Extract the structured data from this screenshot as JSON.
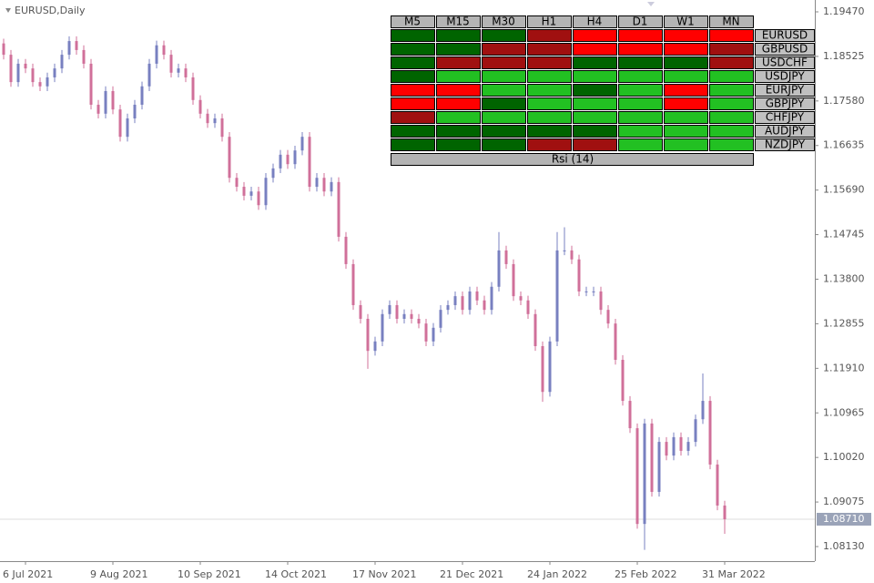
{
  "window": {
    "symbol_label": "EURUSD,Daily"
  },
  "chart_data": {
    "type": "candlestick",
    "up_color": "#7880c0",
    "down_color": "#d0709a",
    "grid": false,
    "categories": [
      null,
      null,
      null,
      "6 Jul 2021",
      null,
      null,
      null,
      null,
      null,
      null,
      null,
      null,
      null,
      null,
      null,
      "9 Aug 2021",
      null,
      null,
      null,
      null,
      null,
      null,
      null,
      null,
      null,
      null,
      null,
      "10 Sep 2021",
      null,
      null,
      null,
      null,
      null,
      null,
      null,
      null,
      null,
      null,
      null,
      "14 Oct 2021",
      null,
      null,
      null,
      null,
      null,
      null,
      null,
      null,
      null,
      null,
      null,
      "17 Nov 2021",
      null,
      null,
      null,
      null,
      null,
      null,
      null,
      null,
      null,
      null,
      null,
      "21 Dec 2021",
      null,
      null,
      null,
      null,
      null,
      null,
      null,
      null,
      null,
      null,
      null,
      "24 Jan 2022",
      null,
      null,
      null,
      null,
      null,
      null,
      null,
      null,
      null,
      null,
      null,
      "25 Feb 2022",
      null,
      null,
      null,
      null,
      null,
      null,
      null,
      null,
      null,
      null,
      null,
      "31 Mar 2022"
    ],
    "open": [
      1.188,
      1.1856,
      1.1798,
      1.1837,
      1.1827,
      1.1798,
      1.1789,
      1.1808,
      1.1827,
      1.1856,
      1.1885,
      1.1866,
      1.1837,
      1.175,
      1.1731,
      1.1779,
      1.174,
      1.1682,
      1.1721,
      1.175,
      1.1789,
      1.1837,
      1.1876,
      1.1856,
      1.1818,
      1.1827,
      1.1808,
      1.176,
      1.1731,
      1.1711,
      1.1721,
      1.1682,
      1.1595,
      1.1576,
      1.1557,
      1.1566,
      1.1537,
      1.1595,
      1.1615,
      1.1644,
      1.1624,
      1.1653,
      1.1682,
      1.1576,
      1.1595,
      1.1566,
      1.1586,
      1.147,
      1.1412,
      1.1325,
      1.1296,
      1.1228,
      1.1248,
      1.1306,
      1.1325,
      1.1296,
      1.1306,
      1.1296,
      1.1286,
      1.1248,
      1.1277,
      1.1315,
      1.1325,
      1.1344,
      1.1315,
      1.1354,
      1.1335,
      1.1315,
      1.1364,
      1.1441,
      1.1412,
      1.1344,
      1.1335,
      1.1306,
      1.1238,
      1.1141,
      1.1248,
      1.1441,
      1.1441,
      1.1422,
      1.1354,
      1.1354,
      1.1354,
      1.1315,
      1.1286,
      1.1209,
      1.1122,
      1.1064,
      1.0861,
      1.1074,
      1.0929,
      1.1035,
      1.1006,
      1.1045,
      1.1016,
      1.1035,
      1.1083,
      1.1122,
      1.0987,
      1.09
    ],
    "high": [
      1.189,
      1.1866,
      1.1847,
      1.1847,
      1.1837,
      1.1808,
      1.1818,
      1.1837,
      1.1866,
      1.1895,
      1.1895,
      1.1876,
      1.1847,
      1.176,
      1.1789,
      1.1789,
      1.175,
      1.1731,
      1.176,
      1.1799,
      1.1847,
      1.1886,
      1.1886,
      1.1866,
      1.1837,
      1.1837,
      1.1818,
      1.177,
      1.1741,
      1.1731,
      1.1731,
      1.1692,
      1.1605,
      1.1586,
      1.1576,
      1.1576,
      1.1605,
      1.1625,
      1.1654,
      1.1654,
      1.1663,
      1.1692,
      1.1692,
      1.1605,
      1.1605,
      1.1596,
      1.1596,
      1.148,
      1.1422,
      1.1335,
      1.1306,
      1.1258,
      1.1316,
      1.1335,
      1.1335,
      1.1316,
      1.1316,
      1.1306,
      1.1296,
      1.1287,
      1.1325,
      1.1335,
      1.1354,
      1.1354,
      1.1364,
      1.1364,
      1.1345,
      1.1374,
      1.148,
      1.1451,
      1.1422,
      1.1354,
      1.1345,
      1.1316,
      1.1248,
      1.1258,
      1.148,
      1.149,
      1.1451,
      1.1432,
      1.1364,
      1.1364,
      1.1364,
      1.1325,
      1.1296,
      1.1219,
      1.1132,
      1.1074,
      1.1084,
      1.1084,
      1.1045,
      1.1045,
      1.1055,
      1.1055,
      1.1045,
      1.1093,
      1.118,
      1.1132,
      1.0997,
      1.091
    ],
    "low": [
      1.1846,
      1.1788,
      1.1788,
      1.1817,
      1.1788,
      1.1779,
      1.1779,
      1.1798,
      1.1817,
      1.1846,
      1.1856,
      1.1827,
      1.174,
      1.1721,
      1.1721,
      1.173,
      1.1672,
      1.1672,
      1.1711,
      1.174,
      1.1779,
      1.1827,
      1.1846,
      1.1808,
      1.1808,
      1.1798,
      1.175,
      1.1721,
      1.1701,
      1.1701,
      1.1672,
      1.1585,
      1.1566,
      1.1547,
      1.1547,
      1.1527,
      1.1527,
      1.1585,
      1.1605,
      1.1614,
      1.1614,
      1.1643,
      1.1566,
      1.1566,
      1.1556,
      1.1556,
      1.146,
      1.1402,
      1.1315,
      1.1286,
      1.119,
      1.1218,
      1.1238,
      1.1296,
      1.1286,
      1.1286,
      1.1286,
      1.1276,
      1.1238,
      1.1238,
      1.1267,
      1.1305,
      1.1315,
      1.1305,
      1.1305,
      1.1325,
      1.1305,
      1.1305,
      1.1354,
      1.1402,
      1.1334,
      1.1325,
      1.1296,
      1.1228,
      1.112,
      1.1131,
      1.1238,
      1.1431,
      1.1412,
      1.1344,
      1.1344,
      1.1344,
      1.1305,
      1.1276,
      1.1199,
      1.1112,
      1.1054,
      1.0851,
      1.0806,
      1.0919,
      1.0919,
      1.0996,
      1.0996,
      1.1006,
      1.1006,
      1.1025,
      1.1073,
      1.0977,
      1.089,
      1.084
    ],
    "close": [
      1.1856,
      1.1798,
      1.1837,
      1.1827,
      1.1798,
      1.1789,
      1.1808,
      1.1827,
      1.1856,
      1.1885,
      1.1866,
      1.1837,
      1.175,
      1.1731,
      1.1779,
      1.174,
      1.1682,
      1.1721,
      1.175,
      1.1789,
      1.1837,
      1.1876,
      1.1856,
      1.1818,
      1.1827,
      1.1808,
      1.176,
      1.1731,
      1.1711,
      1.1721,
      1.1682,
      1.1595,
      1.1576,
      1.1557,
      1.1566,
      1.1537,
      1.1595,
      1.1615,
      1.1644,
      1.1624,
      1.1653,
      1.1682,
      1.1576,
      1.1595,
      1.1566,
      1.1586,
      1.147,
      1.1412,
      1.1325,
      1.1296,
      1.1228,
      1.1248,
      1.1306,
      1.1325,
      1.1296,
      1.1306,
      1.1296,
      1.1286,
      1.1248,
      1.1277,
      1.1315,
      1.1325,
      1.1344,
      1.1315,
      1.1354,
      1.1335,
      1.1315,
      1.1364,
      1.1441,
      1.1412,
      1.1344,
      1.1335,
      1.1306,
      1.1238,
      1.1141,
      1.1248,
      1.1441,
      1.1441,
      1.1422,
      1.1354,
      1.1354,
      1.1354,
      1.1315,
      1.1286,
      1.1209,
      1.1122,
      1.1064,
      1.0861,
      1.1074,
      1.0929,
      1.1035,
      1.1006,
      1.1045,
      1.1016,
      1.1035,
      1.1083,
      1.1122,
      1.0987,
      1.09,
      1.0871
    ],
    "ylim": [
      1.07821,
      1.19721
    ],
    "yticks": [
      {
        "value": 1.1947,
        "label": "1.19470"
      },
      1.18525,
      {
        "value": 1.1758,
        "label": "1.17580"
      },
      1.16635,
      {
        "value": 1.1569,
        "label": "1.15690"
      },
      1.14745,
      {
        "value": 1.138,
        "label": "1.13800"
      },
      1.12855,
      {
        "value": 1.1191,
        "label": "1.11910"
      },
      1.10965,
      {
        "value": 1.1002,
        "label": "1.10020"
      },
      1.09075,
      {
        "value": 1.0813,
        "label": "1.08130"
      }
    ],
    "current_price": {
      "value": 1.0871,
      "label": "1.08710"
    }
  },
  "dashboard": {
    "columns": [
      "M5",
      "M15",
      "M30",
      "H1",
      "H4",
      "D1",
      "W1",
      "MN"
    ],
    "rows": [
      "EURUSD",
      "GBPUSD",
      "USDCHF",
      "USDJPY",
      "EURJPY",
      "GBPJPY",
      "CHFJPY",
      "AUDJPY",
      "NZDJPY"
    ],
    "cell_colors": [
      [
        "#006400",
        "#006400",
        "#006400",
        "#a01010",
        "#ff0000",
        "#ff0000",
        "#ff0000",
        "#ff0000"
      ],
      [
        "#006400",
        "#006400",
        "#a01010",
        "#a01010",
        "#ff0000",
        "#ff0000",
        "#ff0000",
        "#a01010"
      ],
      [
        "#006400",
        "#a01010",
        "#a01010",
        "#a01010",
        "#006400",
        "#006400",
        "#006400",
        "#a01010"
      ],
      [
        "#006400",
        "#22c022",
        "#22c022",
        "#22c022",
        "#22c022",
        "#22c022",
        "#22c022",
        "#22c022"
      ],
      [
        "#ff0000",
        "#ff0000",
        "#22c022",
        "#22c022",
        "#006400",
        "#22c022",
        "#ff0000",
        "#22c022"
      ],
      [
        "#ff0000",
        "#ff0000",
        "#006400",
        "#22c022",
        "#22c022",
        "#22c022",
        "#ff0000",
        "#22c022"
      ],
      [
        "#a01010",
        "#22c022",
        "#22c022",
        "#22c022",
        "#22c022",
        "#22c022",
        "#22c022",
        "#22c022"
      ],
      [
        "#006400",
        "#006400",
        "#006400",
        "#006400",
        "#006400",
        "#22c022",
        "#22c022",
        "#22c022"
      ],
      [
        "#006400",
        "#006400",
        "#006400",
        "#a01010",
        "#a01010",
        "#22c022",
        "#22c022",
        "#22c022"
      ]
    ],
    "footer": "Rsi (14)"
  }
}
